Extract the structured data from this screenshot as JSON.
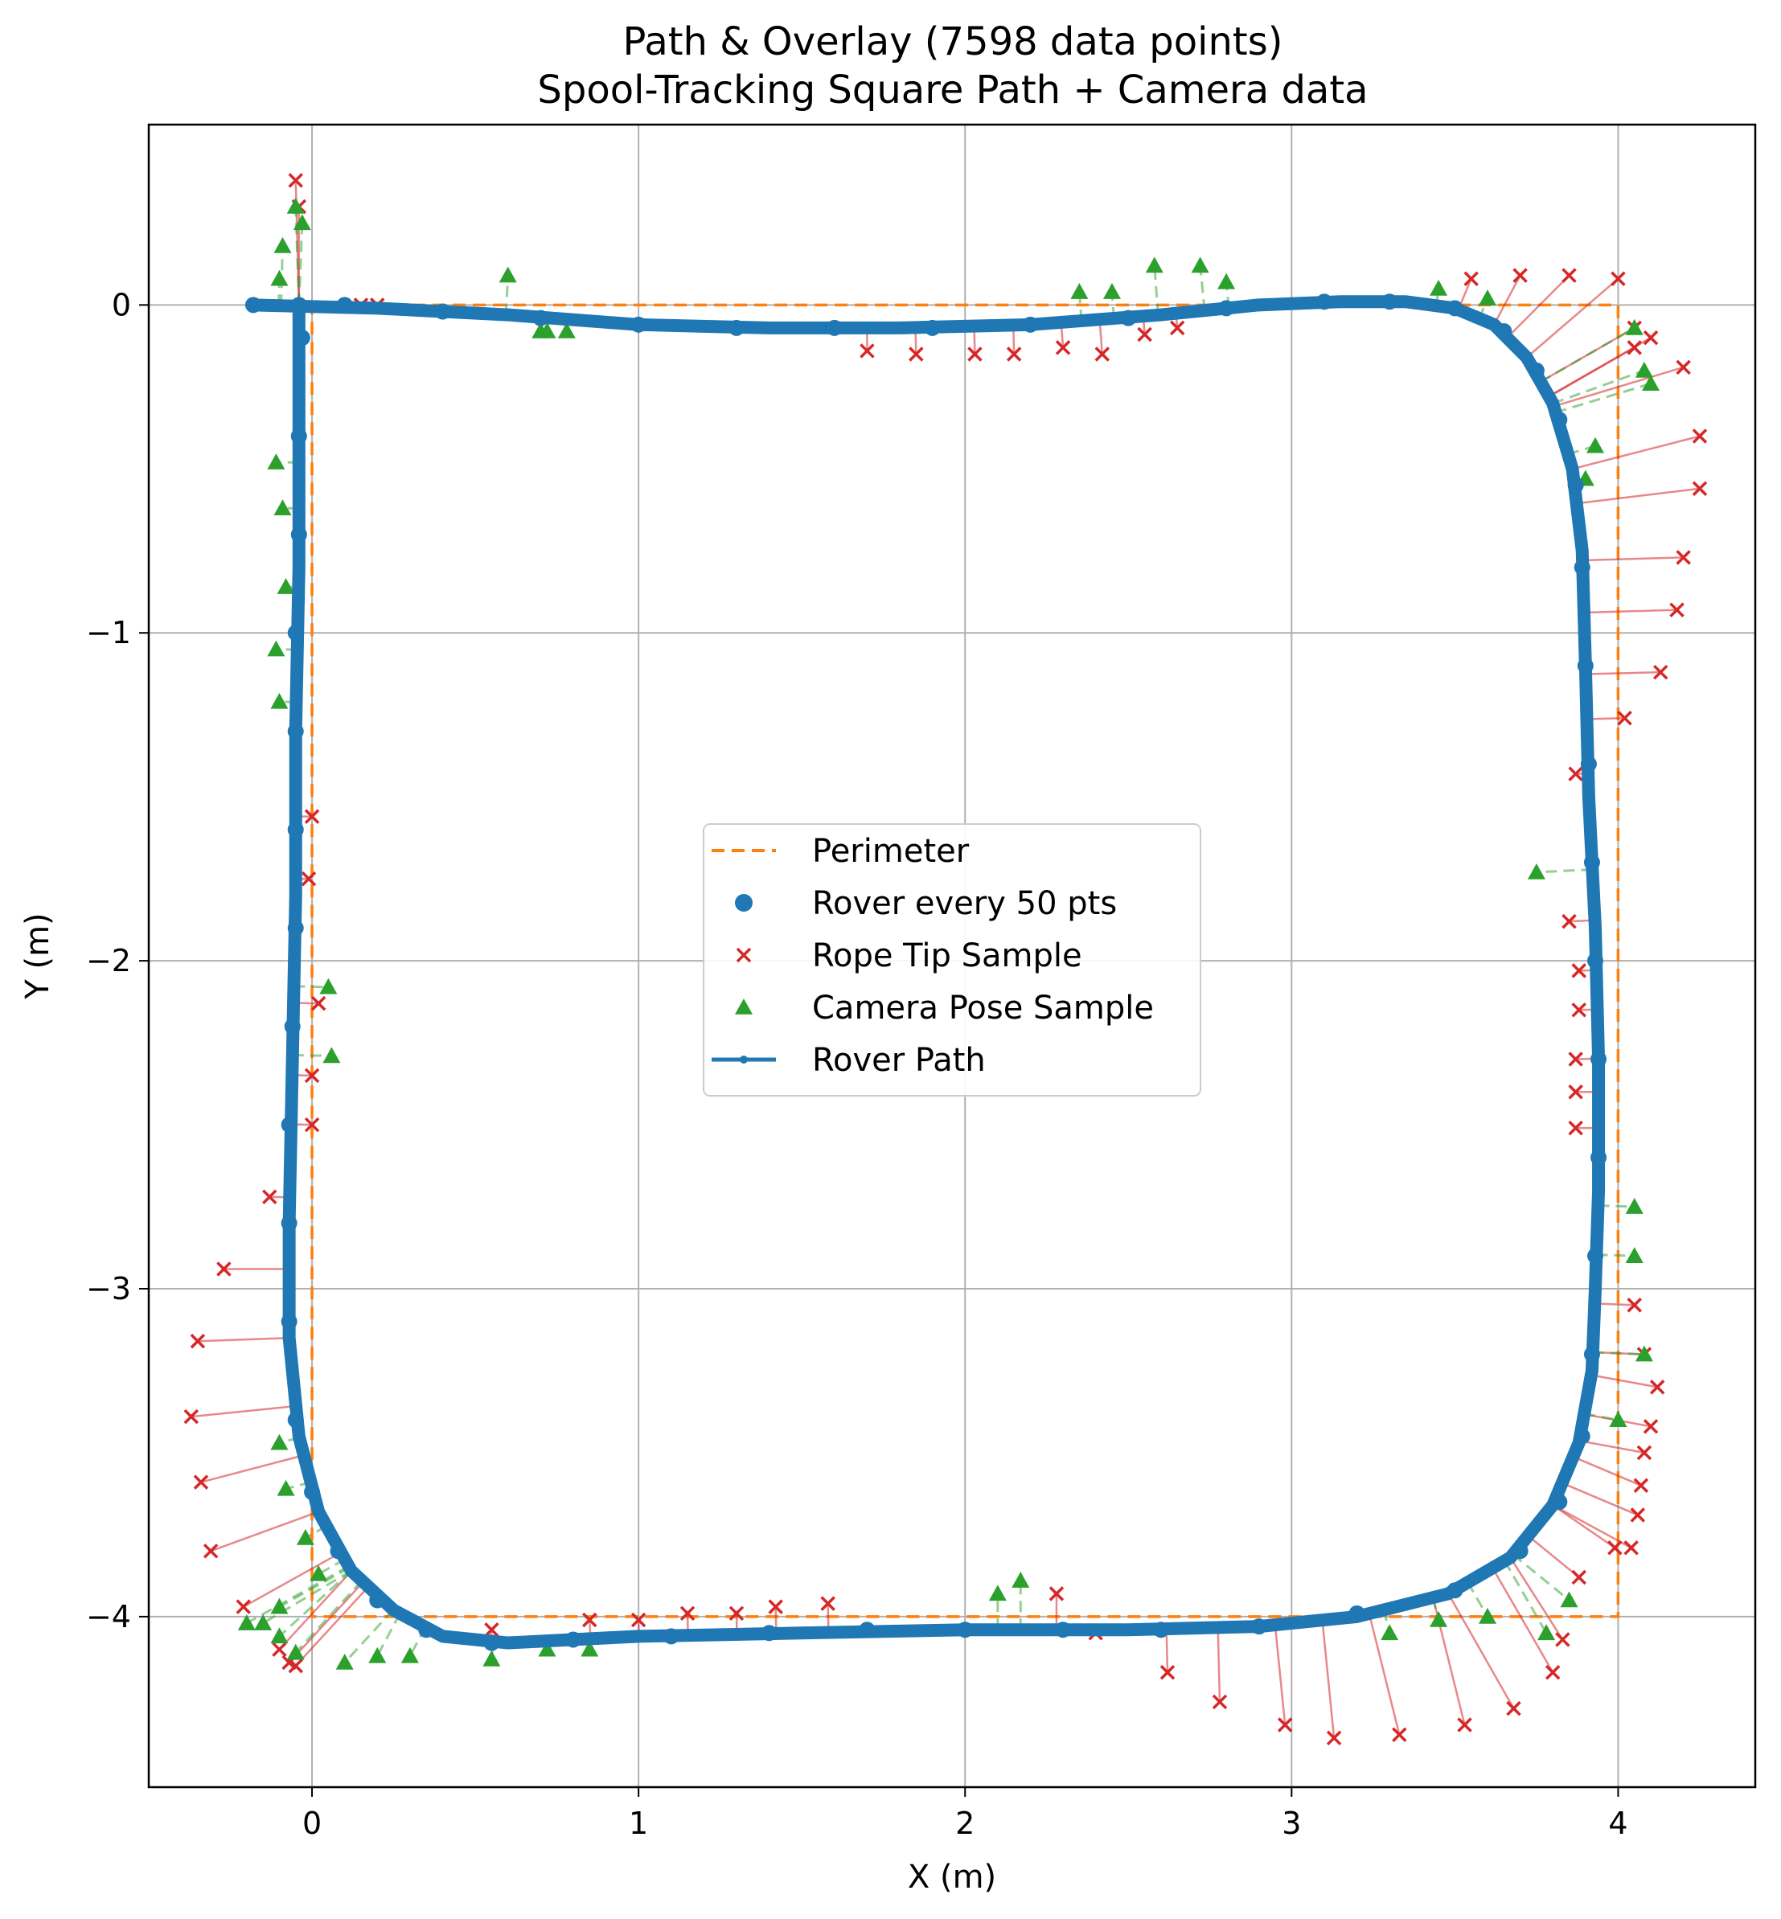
{
  "chart_data": {
    "type": "scatter",
    "title": "Path & Overlay (7598 data points)",
    "subtitle": "Spool-Tracking Square Path + Camera data",
    "xlabel": "X (m)",
    "ylabel": "Y (m)",
    "xlim": [
      -0.5,
      4.42
    ],
    "ylim": [
      -4.52,
      0.55
    ],
    "xticks": [
      0,
      1,
      2,
      3,
      4
    ],
    "yticks": [
      0,
      -1,
      -2,
      -3,
      -4
    ],
    "xtick_labels": [
      "0",
      "1",
      "2",
      "3",
      "4"
    ],
    "ytick_labels": [
      "0",
      "−1",
      "−2",
      "−3",
      "−4"
    ],
    "grid": true,
    "legend_position": "center",
    "colors": {
      "perimeter": "#ff7f0e",
      "rover": "#1f77b4",
      "rope": "#d62728",
      "camera": "#2ca02c"
    },
    "series": [
      {
        "name": "Perimeter",
        "style": "dashed-line",
        "points": [
          [
            0,
            0
          ],
          [
            4,
            0
          ],
          [
            4,
            -4
          ],
          [
            0,
            -4
          ],
          [
            0,
            0
          ]
        ]
      },
      {
        "name": "Rover every 50 pts",
        "style": "dots",
        "points": [
          [
            -0.18,
            0.0
          ],
          [
            0.1,
            0.0
          ],
          [
            0.4,
            -0.02
          ],
          [
            0.7,
            -0.04
          ],
          [
            1.0,
            -0.06
          ],
          [
            1.3,
            -0.07
          ],
          [
            1.6,
            -0.07
          ],
          [
            1.9,
            -0.07
          ],
          [
            2.2,
            -0.06
          ],
          [
            2.5,
            -0.04
          ],
          [
            2.8,
            -0.01
          ],
          [
            3.1,
            0.01
          ],
          [
            3.3,
            0.01
          ],
          [
            3.5,
            -0.01
          ],
          [
            3.65,
            -0.08
          ],
          [
            3.75,
            -0.2
          ],
          [
            3.82,
            -0.35
          ],
          [
            3.87,
            -0.55
          ],
          [
            3.89,
            -0.8
          ],
          [
            3.9,
            -1.1
          ],
          [
            3.91,
            -1.4
          ],
          [
            3.92,
            -1.7
          ],
          [
            3.93,
            -2.0
          ],
          [
            3.94,
            -2.3
          ],
          [
            3.94,
            -2.6
          ],
          [
            3.93,
            -2.9
          ],
          [
            3.92,
            -3.2
          ],
          [
            3.89,
            -3.45
          ],
          [
            3.82,
            -3.65
          ],
          [
            3.7,
            -3.8
          ],
          [
            3.5,
            -3.92
          ],
          [
            3.2,
            -3.99
          ],
          [
            2.9,
            -4.03
          ],
          [
            2.6,
            -4.04
          ],
          [
            2.3,
            -4.04
          ],
          [
            2.0,
            -4.04
          ],
          [
            1.7,
            -4.04
          ],
          [
            1.4,
            -4.05
          ],
          [
            1.1,
            -4.06
          ],
          [
            0.8,
            -4.07
          ],
          [
            0.55,
            -4.08
          ],
          [
            0.35,
            -4.04
          ],
          [
            0.2,
            -3.95
          ],
          [
            0.08,
            -3.8
          ],
          [
            0.0,
            -3.62
          ],
          [
            -0.05,
            -3.4
          ],
          [
            -0.07,
            -3.1
          ],
          [
            -0.07,
            -2.8
          ],
          [
            -0.07,
            -2.5
          ],
          [
            -0.06,
            -2.2
          ],
          [
            -0.05,
            -1.9
          ],
          [
            -0.05,
            -1.6
          ],
          [
            -0.05,
            -1.3
          ],
          [
            -0.05,
            -1.0
          ],
          [
            -0.04,
            -0.7
          ],
          [
            -0.04,
            -0.4
          ],
          [
            -0.03,
            -0.1
          ],
          [
            -0.04,
            0.0
          ]
        ]
      },
      {
        "name": "Rope Tip Sample",
        "style": "x-markers",
        "points": [
          [
            -0.05,
            0.38
          ],
          [
            -0.04,
            0.3
          ],
          [
            0.15,
            0.0
          ],
          [
            0.2,
            0.0
          ],
          [
            1.7,
            -0.14
          ],
          [
            1.85,
            -0.15
          ],
          [
            2.03,
            -0.15
          ],
          [
            2.15,
            -0.15
          ],
          [
            2.3,
            -0.13
          ],
          [
            2.42,
            -0.15
          ],
          [
            2.55,
            -0.09
          ],
          [
            2.65,
            -0.07
          ],
          [
            3.55,
            0.08
          ],
          [
            3.7,
            0.09
          ],
          [
            3.85,
            0.09
          ],
          [
            4.0,
            0.08
          ],
          [
            4.05,
            -0.07
          ],
          [
            4.1,
            -0.1
          ],
          [
            4.05,
            -0.13
          ],
          [
            4.2,
            -0.19
          ],
          [
            4.25,
            -0.4
          ],
          [
            4.25,
            -0.56
          ],
          [
            4.2,
            -0.77
          ],
          [
            4.18,
            -0.93
          ],
          [
            4.13,
            -1.12
          ],
          [
            4.02,
            -1.26
          ],
          [
            3.87,
            -1.43
          ],
          [
            3.85,
            -1.88
          ],
          [
            3.88,
            -2.03
          ],
          [
            3.88,
            -2.15
          ],
          [
            3.87,
            -2.3
          ],
          [
            3.87,
            -2.4
          ],
          [
            3.87,
            -2.51
          ],
          [
            4.05,
            -3.05
          ],
          [
            4.08,
            -3.2
          ],
          [
            4.12,
            -3.3
          ],
          [
            4.1,
            -3.42
          ],
          [
            4.08,
            -3.5
          ],
          [
            4.07,
            -3.6
          ],
          [
            4.06,
            -3.69
          ],
          [
            4.04,
            -3.79
          ],
          [
            3.99,
            -3.79
          ],
          [
            3.88,
            -3.88
          ],
          [
            3.83,
            -4.07
          ],
          [
            3.8,
            -4.17
          ],
          [
            3.68,
            -4.28
          ],
          [
            3.53,
            -4.33
          ],
          [
            3.33,
            -4.36
          ],
          [
            3.13,
            -4.37
          ],
          [
            2.98,
            -4.33
          ],
          [
            2.78,
            -4.26
          ],
          [
            2.62,
            -4.17
          ],
          [
            2.4,
            -4.05
          ],
          [
            2.28,
            -3.93
          ],
          [
            1.58,
            -3.96
          ],
          [
            1.42,
            -3.97
          ],
          [
            1.3,
            -3.99
          ],
          [
            1.15,
            -3.99
          ],
          [
            1.0,
            -4.01
          ],
          [
            0.85,
            -4.01
          ],
          [
            0.55,
            -4.04
          ],
          [
            -0.35,
            -3.16
          ],
          [
            -0.37,
            -3.39
          ],
          [
            -0.34,
            -3.59
          ],
          [
            -0.31,
            -3.8
          ],
          [
            -0.21,
            -3.97
          ],
          [
            -0.27,
            -2.94
          ],
          [
            -0.13,
            -2.72
          ],
          [
            -0.1,
            -4.1
          ],
          [
            -0.07,
            -4.14
          ],
          [
            -0.05,
            -4.15
          ],
          [
            0.0,
            -2.5
          ],
          [
            0.0,
            -2.35
          ],
          [
            0.02,
            -2.13
          ],
          [
            -0.01,
            -1.75
          ],
          [
            0.0,
            -1.56
          ]
        ]
      },
      {
        "name": "Camera Pose Sample",
        "style": "triangle-markers",
        "points": [
          [
            -0.09,
            0.18
          ],
          [
            -0.1,
            0.08
          ],
          [
            -0.05,
            0.3
          ],
          [
            -0.03,
            0.25
          ],
          [
            0.6,
            0.09
          ],
          [
            0.7,
            -0.08
          ],
          [
            0.72,
            -0.08
          ],
          [
            0.78,
            -0.08
          ],
          [
            2.58,
            0.12
          ],
          [
            2.72,
            0.12
          ],
          [
            2.8,
            0.07
          ],
          [
            2.35,
            0.04
          ],
          [
            2.45,
            0.04
          ],
          [
            3.45,
            0.05
          ],
          [
            3.6,
            0.02
          ],
          [
            4.05,
            -0.07
          ],
          [
            4.08,
            -0.2
          ],
          [
            4.1,
            -0.24
          ],
          [
            3.93,
            -0.43
          ],
          [
            3.9,
            -0.53
          ],
          [
            3.75,
            -1.73
          ],
          [
            4.05,
            -2.75
          ],
          [
            4.05,
            -2.9
          ],
          [
            4.08,
            -3.2
          ],
          [
            4.0,
            -3.4
          ],
          [
            3.85,
            -3.95
          ],
          [
            3.78,
            -4.05
          ],
          [
            3.6,
            -4.0
          ],
          [
            3.45,
            -4.01
          ],
          [
            3.3,
            -4.05
          ],
          [
            2.1,
            -3.93
          ],
          [
            2.17,
            -3.89
          ],
          [
            0.85,
            -4.1
          ],
          [
            0.72,
            -4.1
          ],
          [
            0.55,
            -4.13
          ],
          [
            0.3,
            -4.12
          ],
          [
            0.2,
            -4.12
          ],
          [
            0.1,
            -4.14
          ],
          [
            -0.05,
            -4.11
          ],
          [
            -0.1,
            -4.06
          ],
          [
            -0.15,
            -4.02
          ],
          [
            -0.2,
            -4.02
          ],
          [
            -0.1,
            -3.97
          ],
          [
            -0.08,
            -3.61
          ],
          [
            -0.1,
            -3.47
          ],
          [
            -0.02,
            -3.76
          ],
          [
            0.02,
            -3.87
          ],
          [
            0.05,
            -2.08
          ],
          [
            0.06,
            -2.29
          ],
          [
            -0.11,
            -1.05
          ],
          [
            -0.1,
            -1.21
          ],
          [
            -0.11,
            -0.48
          ],
          [
            -0.09,
            -0.62
          ],
          [
            -0.08,
            -0.86
          ]
        ]
      },
      {
        "name": "Rover Path",
        "style": "solid-line",
        "points": [
          [
            -0.18,
            0.0
          ],
          [
            0.2,
            -0.01
          ],
          [
            0.6,
            -0.03
          ],
          [
            1.0,
            -0.06
          ],
          [
            1.4,
            -0.07
          ],
          [
            1.8,
            -0.07
          ],
          [
            2.2,
            -0.06
          ],
          [
            2.6,
            -0.03
          ],
          [
            2.9,
            0.0
          ],
          [
            3.15,
            0.01
          ],
          [
            3.35,
            0.01
          ],
          [
            3.5,
            -0.01
          ],
          [
            3.62,
            -0.06
          ],
          [
            3.72,
            -0.16
          ],
          [
            3.8,
            -0.3
          ],
          [
            3.86,
            -0.5
          ],
          [
            3.89,
            -0.75
          ],
          [
            3.9,
            -1.1
          ],
          [
            3.91,
            -1.5
          ],
          [
            3.93,
            -1.9
          ],
          [
            3.94,
            -2.3
          ],
          [
            3.94,
            -2.7
          ],
          [
            3.93,
            -3.0
          ],
          [
            3.92,
            -3.25
          ],
          [
            3.88,
            -3.47
          ],
          [
            3.8,
            -3.66
          ],
          [
            3.67,
            -3.82
          ],
          [
            3.48,
            -3.93
          ],
          [
            3.2,
            -4.0
          ],
          [
            2.9,
            -4.03
          ],
          [
            2.5,
            -4.04
          ],
          [
            2.0,
            -4.04
          ],
          [
            1.5,
            -4.05
          ],
          [
            1.0,
            -4.06
          ],
          [
            0.6,
            -4.08
          ],
          [
            0.4,
            -4.06
          ],
          [
            0.25,
            -3.98
          ],
          [
            0.12,
            -3.86
          ],
          [
            0.02,
            -3.68
          ],
          [
            -0.04,
            -3.45
          ],
          [
            -0.07,
            -3.15
          ],
          [
            -0.07,
            -2.8
          ],
          [
            -0.06,
            -2.3
          ],
          [
            -0.05,
            -1.8
          ],
          [
            -0.05,
            -1.3
          ],
          [
            -0.04,
            -0.8
          ],
          [
            -0.04,
            -0.3
          ],
          [
            -0.04,
            0.0
          ]
        ]
      }
    ]
  }
}
